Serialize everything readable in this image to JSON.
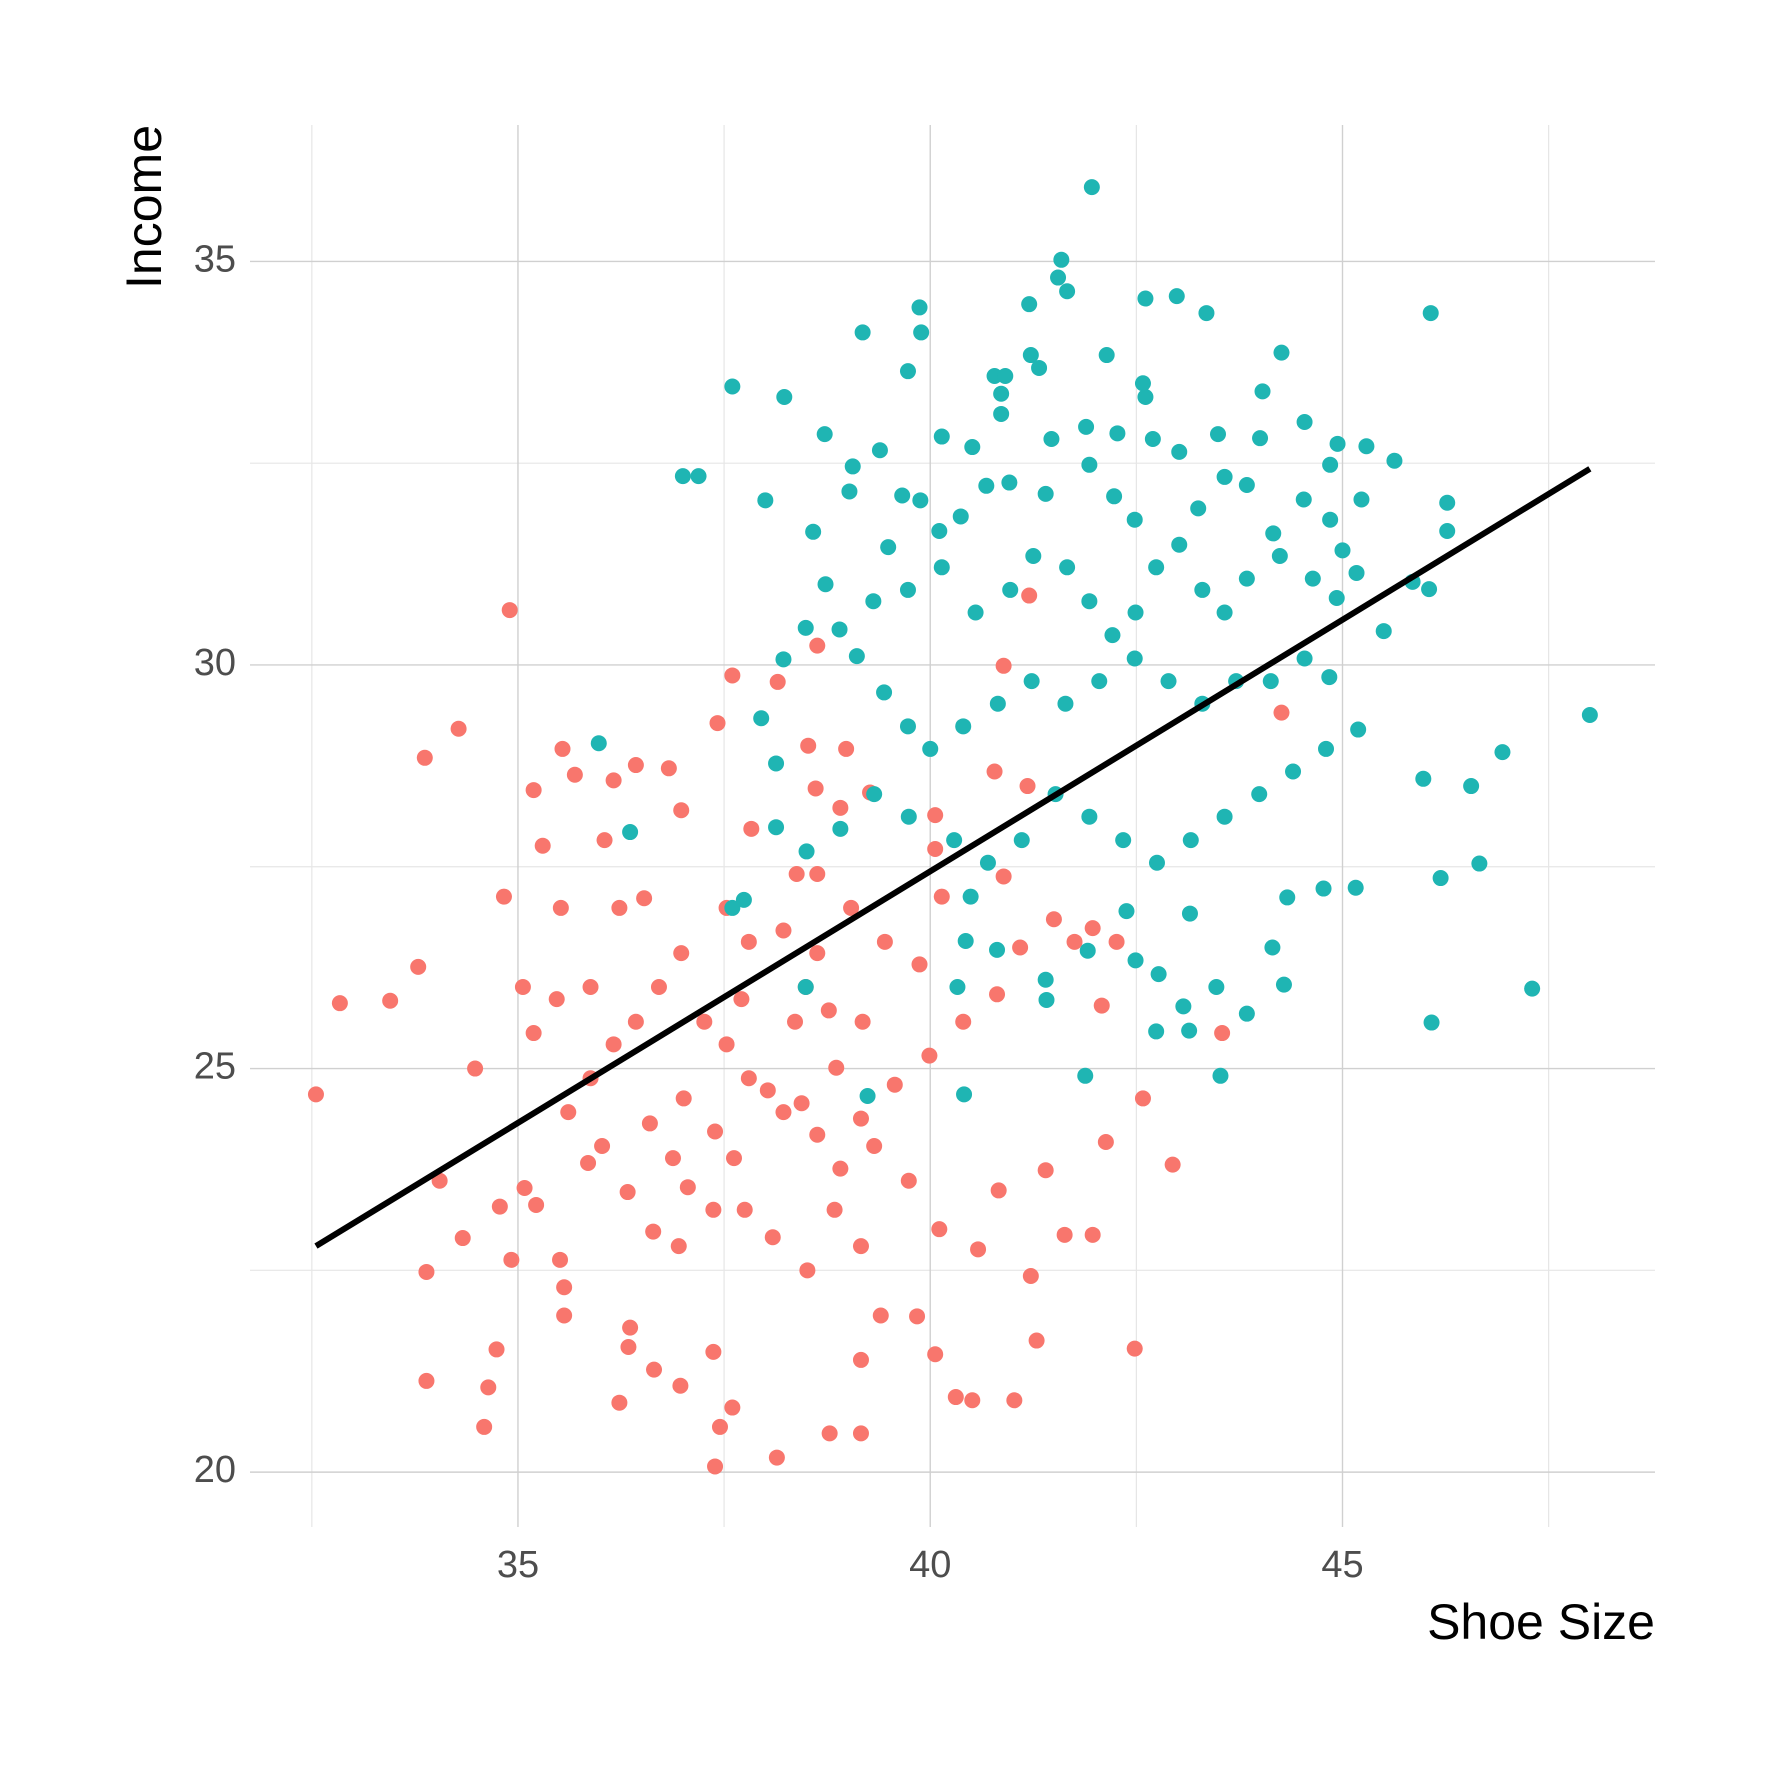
{
  "chart_data": {
    "type": "scatter",
    "xlabel": "Shoe Size",
    "ylabel": "Income",
    "xlim": [
      31.75,
      48.79
    ],
    "ylim": [
      19.32,
      36.69
    ],
    "xticks": [
      35,
      40,
      45
    ],
    "yticks": [
      20,
      25,
      30,
      35
    ],
    "xminor": [
      32.5,
      37.5,
      42.5,
      47.5
    ],
    "yminor": [
      22.5,
      27.5,
      32.5
    ],
    "grid": true,
    "series": [
      {
        "color": "#f8766d",
        "x": [
          32.55,
          32.84,
          33.45,
          33.79,
          33.87,
          34.28,
          34.9,
          33.89,
          33.89,
          34.59,
          34.74,
          34.64,
          34.05,
          34.33,
          34.48,
          34.78,
          34.92,
          34.83,
          35.19,
          35.54,
          35.69,
          35.3,
          35.52,
          35.08,
          35.22,
          35.51,
          35.56,
          35.56,
          36.16,
          36.43,
          36.83,
          36.98,
          36.05,
          36.23,
          36.53,
          35.85,
          36.02,
          36.36,
          36.34,
          36.23,
          36.65,
          36.97,
          37.37,
          37.39,
          37.6,
          37.45,
          38.14,
          38.78,
          39.16,
          39.16,
          40.06,
          40.31,
          40.51,
          41.02,
          41.29,
          42.48,
          42.94,
          42.58,
          42.13,
          41.97,
          41.63,
          41.4,
          41.22,
          40.83,
          40.58,
          40.11,
          39.84,
          39.4,
          39.16,
          38.84,
          38.51,
          38.09,
          37.75,
          37.37,
          36.95,
          36.64,
          37.06,
          37.39,
          37.01,
          37.62,
          38.03,
          38.44,
          38.86,
          39.16,
          39.57,
          39.99,
          40.4,
          40.81,
          41.09,
          41.5,
          41.75,
          41.97,
          42.08,
          42.26,
          43.54,
          44.26,
          41.2,
          40.89,
          40.78,
          41.18,
          40.89,
          40.06,
          40.06,
          38.63,
          37.6,
          37.42,
          38.15,
          38.52,
          38.61,
          38.91,
          39.27,
          38.98,
          37.83,
          38.38,
          38.63,
          37.53,
          37.8,
          38.22,
          38.63,
          39.04,
          39.45,
          39.87,
          40.14,
          36.98,
          36.71,
          36.43,
          36.16,
          35.88,
          35.61,
          35.19,
          35.06,
          35.47,
          35.88,
          37.26,
          37.53,
          37.8,
          38.22,
          38.63,
          38.91,
          39.32,
          39.74,
          38.36,
          38.49,
          38.77,
          39.18,
          37.71,
          36.6,
          36.88,
          36.33
        ],
        "values": [
          24.68,
          25.81,
          25.84,
          26.26,
          28.85,
          29.21,
          30.68,
          22.48,
          21.13,
          20.56,
          21.52,
          21.05,
          23.61,
          22.9,
          25.0,
          23.29,
          22.63,
          27.13,
          28.45,
          28.96,
          28.64,
          27.76,
          26.99,
          23.52,
          23.31,
          22.63,
          22.29,
          21.94,
          28.57,
          28.76,
          28.72,
          28.2,
          27.83,
          26.99,
          27.11,
          23.83,
          24.04,
          21.79,
          21.55,
          20.86,
          21.27,
          21.07,
          21.49,
          20.07,
          20.8,
          20.56,
          20.18,
          20.48,
          20.48,
          21.39,
          21.46,
          20.93,
          20.89,
          20.89,
          21.63,
          21.53,
          23.81,
          24.63,
          24.09,
          22.94,
          22.94,
          23.74,
          22.43,
          23.49,
          22.76,
          23.01,
          21.93,
          21.94,
          22.8,
          23.25,
          22.5,
          22.91,
          23.25,
          23.25,
          22.8,
          22.98,
          23.53,
          24.22,
          24.63,
          23.89,
          24.73,
          24.57,
          25.01,
          24.38,
          24.8,
          25.16,
          25.58,
          25.92,
          26.5,
          26.85,
          26.57,
          26.74,
          25.78,
          26.57,
          25.44,
          29.41,
          30.86,
          29.99,
          28.68,
          28.5,
          27.38,
          27.72,
          28.14,
          30.24,
          29.87,
          29.28,
          29.79,
          29.0,
          28.47,
          28.23,
          28.42,
          28.96,
          27.97,
          27.41,
          27.41,
          26.99,
          26.57,
          26.71,
          26.43,
          26.99,
          26.57,
          26.29,
          27.13,
          26.43,
          26.01,
          25.58,
          25.3,
          24.88,
          24.46,
          25.44,
          26.01,
          25.86,
          26.01,
          25.58,
          25.3,
          24.88,
          24.46,
          24.18,
          23.76,
          24.04,
          23.61,
          25.58,
          26.01,
          25.72,
          25.58,
          25.86,
          24.32,
          23.89,
          23.47
        ]
      },
      {
        "color": "#1fb5b3",
        "x": [
          41.96,
          41.59,
          41.55,
          41.66,
          41.2,
          42.61,
          42.99,
          43.35,
          46.07,
          39.87,
          39.89,
          39.18,
          39.73,
          37.6,
          38.23,
          42.14,
          41.22,
          41.32,
          44.26,
          42.58,
          42.61,
          44.03,
          40.86,
          40.78,
          40.91,
          40.86,
          38.72,
          39.39,
          40.14,
          40.51,
          41.47,
          41.89,
          42.27,
          42.7,
          43.02,
          43.49,
          44.0,
          44.54,
          44.94,
          45.29,
          45.63,
          44.85,
          37.19,
          38.0,
          39.06,
          39.02,
          39.66,
          39.88,
          38.58,
          39.49,
          40.11,
          40.37,
          40.68,
          40.96,
          41.4,
          41.93,
          42.23,
          42.48,
          43.25,
          43.57,
          43.84,
          44.16,
          44.53,
          44.85,
          45.23,
          46.27,
          46.27,
          45.85,
          46.05,
          45.5,
          44.93,
          45.17,
          45.0,
          44.64,
          44.24,
          43.84,
          43.57,
          43.3,
          43.02,
          42.74,
          42.49,
          42.21,
          41.93,
          41.66,
          41.25,
          40.97,
          40.55,
          40.14,
          39.73,
          39.31,
          38.9,
          38.49,
          38.22,
          38.73,
          39.11,
          39.44,
          39.73,
          40.0,
          40.4,
          40.82,
          41.23,
          41.64,
          42.05,
          42.48,
          42.89,
          43.3,
          43.71,
          44.13,
          44.54,
          44.84,
          45.19,
          44.8,
          44.4,
          43.99,
          43.57,
          43.16,
          42.75,
          42.34,
          41.93,
          41.52,
          41.11,
          40.7,
          40.29,
          39.74,
          39.32,
          38.91,
          38.5,
          38.13,
          38.13,
          37.95,
          37.0,
          35.98,
          36.36,
          46.94,
          46.56,
          45.98,
          46.19,
          46.66,
          47.3,
          46.08,
          48.0,
          45.16,
          44.77,
          44.33,
          44.15,
          44.29,
          43.84,
          43.47,
          43.15,
          43.07,
          43.14,
          42.74,
          42.77,
          42.49,
          42.38,
          43.52,
          41.91,
          41.41,
          41.4,
          40.81,
          40.43,
          40.33,
          40.49,
          41.88,
          40.41,
          39.24,
          38.49,
          37.6,
          37.74
        ],
        "values": [
          35.92,
          35.02,
          34.8,
          34.63,
          34.47,
          34.54,
          34.57,
          34.36,
          34.36,
          34.43,
          34.12,
          34.12,
          33.64,
          33.45,
          33.32,
          33.84,
          33.84,
          33.68,
          33.87,
          33.49,
          33.32,
          33.39,
          33.36,
          33.58,
          33.58,
          33.11,
          32.86,
          32.66,
          32.83,
          32.7,
          32.8,
          32.95,
          32.87,
          32.8,
          32.64,
          32.86,
          32.81,
          33.01,
          32.74,
          32.71,
          32.53,
          32.48,
          32.34,
          32.04,
          32.46,
          32.15,
          32.1,
          32.04,
          31.65,
          31.46,
          31.66,
          31.84,
          32.22,
          32.26,
          32.12,
          32.48,
          32.09,
          31.8,
          31.94,
          32.33,
          32.23,
          31.63,
          32.05,
          31.8,
          32.05,
          32.01,
          31.66,
          31.03,
          30.94,
          30.42,
          30.83,
          31.14,
          31.42,
          31.07,
          31.35,
          31.07,
          30.65,
          30.93,
          31.49,
          31.21,
          30.65,
          30.37,
          30.79,
          31.21,
          31.35,
          30.93,
          30.65,
          31.21,
          30.93,
          30.79,
          30.44,
          30.46,
          30.07,
          31.0,
          30.11,
          29.66,
          29.24,
          28.96,
          29.24,
          29.52,
          29.8,
          29.52,
          29.8,
          30.08,
          29.8,
          29.52,
          29.8,
          29.8,
          30.08,
          29.85,
          29.2,
          28.96,
          28.68,
          28.4,
          28.12,
          27.83,
          27.55,
          27.83,
          28.12,
          28.4,
          27.83,
          27.55,
          27.83,
          28.12,
          28.4,
          27.97,
          27.69,
          28.78,
          27.99,
          29.34,
          32.34,
          29.03,
          27.93,
          28.92,
          28.5,
          28.59,
          27.36,
          27.54,
          25.99,
          25.57,
          29.38,
          27.24,
          27.23,
          27.12,
          26.5,
          26.04,
          25.68,
          26.01,
          26.92,
          25.77,
          25.47,
          25.46,
          26.17,
          26.34,
          26.95,
          24.91,
          26.46,
          25.85,
          26.1,
          26.47,
          26.58,
          26.01,
          27.13,
          24.91,
          24.68,
          24.66,
          26.01,
          26.99,
          27.09
        ]
      },
      {
        "type": "line",
        "color": "#000000",
        "x": [
          32.55,
          48.0
        ],
        "values": [
          22.8,
          32.43
        ]
      }
    ]
  }
}
